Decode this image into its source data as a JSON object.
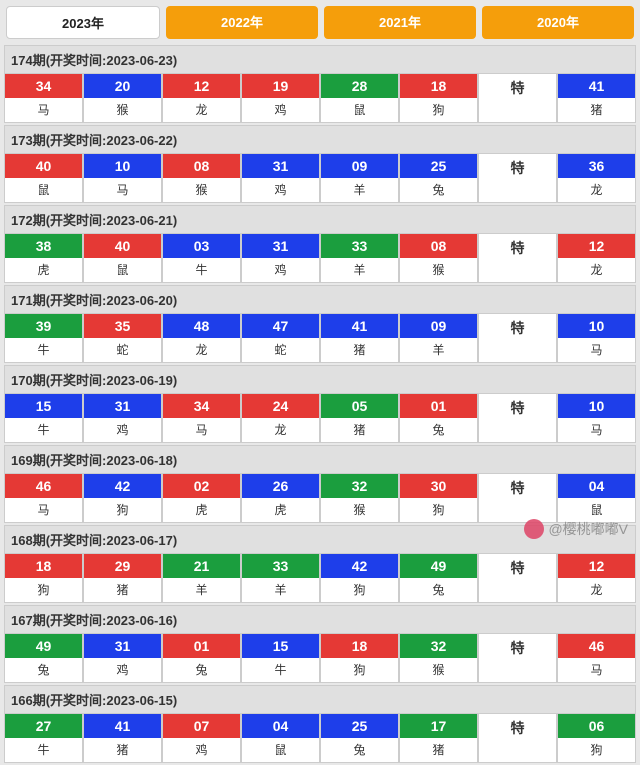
{
  "tabs": [
    {
      "label": "2023年",
      "active": true
    },
    {
      "label": "2022年",
      "active": false
    },
    {
      "label": "2021年",
      "active": false
    },
    {
      "label": "2020年",
      "active": false
    }
  ],
  "colors": {
    "red": "#e53935",
    "blue": "#1e3eea",
    "green": "#1b9e3e",
    "tab_inactive": "#f59e0b",
    "bg": "#e8e8e8"
  },
  "special_label": "特",
  "watermark": "@樱桃嘟嘟V",
  "periods": [
    {
      "period": "174",
      "date": "2023-06-23",
      "balls": [
        {
          "n": "34",
          "c": "red",
          "z": "马"
        },
        {
          "n": "20",
          "c": "blue",
          "z": "猴"
        },
        {
          "n": "12",
          "c": "red",
          "z": "龙"
        },
        {
          "n": "19",
          "c": "red",
          "z": "鸡"
        },
        {
          "n": "28",
          "c": "green",
          "z": "鼠"
        },
        {
          "n": "18",
          "c": "red",
          "z": "狗"
        }
      ],
      "special": {
        "n": "41",
        "c": "blue",
        "z": "猪"
      }
    },
    {
      "period": "173",
      "date": "2023-06-22",
      "balls": [
        {
          "n": "40",
          "c": "red",
          "z": "鼠"
        },
        {
          "n": "10",
          "c": "blue",
          "z": "马"
        },
        {
          "n": "08",
          "c": "red",
          "z": "猴"
        },
        {
          "n": "31",
          "c": "blue",
          "z": "鸡"
        },
        {
          "n": "09",
          "c": "blue",
          "z": "羊"
        },
        {
          "n": "25",
          "c": "blue",
          "z": "兔"
        }
      ],
      "special": {
        "n": "36",
        "c": "blue",
        "z": "龙"
      }
    },
    {
      "period": "172",
      "date": "2023-06-21",
      "balls": [
        {
          "n": "38",
          "c": "green",
          "z": "虎"
        },
        {
          "n": "40",
          "c": "red",
          "z": "鼠"
        },
        {
          "n": "03",
          "c": "blue",
          "z": "牛"
        },
        {
          "n": "31",
          "c": "blue",
          "z": "鸡"
        },
        {
          "n": "33",
          "c": "green",
          "z": "羊"
        },
        {
          "n": "08",
          "c": "red",
          "z": "猴"
        }
      ],
      "special": {
        "n": "12",
        "c": "red",
        "z": "龙"
      }
    },
    {
      "period": "171",
      "date": "2023-06-20",
      "balls": [
        {
          "n": "39",
          "c": "green",
          "z": "牛"
        },
        {
          "n": "35",
          "c": "red",
          "z": "蛇"
        },
        {
          "n": "48",
          "c": "blue",
          "z": "龙"
        },
        {
          "n": "47",
          "c": "blue",
          "z": "蛇"
        },
        {
          "n": "41",
          "c": "blue",
          "z": "猪"
        },
        {
          "n": "09",
          "c": "blue",
          "z": "羊"
        }
      ],
      "special": {
        "n": "10",
        "c": "blue",
        "z": "马"
      }
    },
    {
      "period": "170",
      "date": "2023-06-19",
      "balls": [
        {
          "n": "15",
          "c": "blue",
          "z": "牛"
        },
        {
          "n": "31",
          "c": "blue",
          "z": "鸡"
        },
        {
          "n": "34",
          "c": "red",
          "z": "马"
        },
        {
          "n": "24",
          "c": "red",
          "z": "龙"
        },
        {
          "n": "05",
          "c": "green",
          "z": "猪"
        },
        {
          "n": "01",
          "c": "red",
          "z": "兔"
        }
      ],
      "special": {
        "n": "10",
        "c": "blue",
        "z": "马"
      }
    },
    {
      "period": "169",
      "date": "2023-06-18",
      "balls": [
        {
          "n": "46",
          "c": "red",
          "z": "马"
        },
        {
          "n": "42",
          "c": "blue",
          "z": "狗"
        },
        {
          "n": "02",
          "c": "red",
          "z": "虎"
        },
        {
          "n": "26",
          "c": "blue",
          "z": "虎"
        },
        {
          "n": "32",
          "c": "green",
          "z": "猴"
        },
        {
          "n": "30",
          "c": "red",
          "z": "狗"
        }
      ],
      "special": {
        "n": "04",
        "c": "blue",
        "z": "鼠"
      }
    },
    {
      "period": "168",
      "date": "2023-06-17",
      "balls": [
        {
          "n": "18",
          "c": "red",
          "z": "狗"
        },
        {
          "n": "29",
          "c": "red",
          "z": "猪"
        },
        {
          "n": "21",
          "c": "green",
          "z": "羊"
        },
        {
          "n": "33",
          "c": "green",
          "z": "羊"
        },
        {
          "n": "42",
          "c": "blue",
          "z": "狗"
        },
        {
          "n": "49",
          "c": "green",
          "z": "兔"
        }
      ],
      "special": {
        "n": "12",
        "c": "red",
        "z": "龙"
      }
    },
    {
      "period": "167",
      "date": "2023-06-16",
      "balls": [
        {
          "n": "49",
          "c": "green",
          "z": "兔"
        },
        {
          "n": "31",
          "c": "blue",
          "z": "鸡"
        },
        {
          "n": "01",
          "c": "red",
          "z": "兔"
        },
        {
          "n": "15",
          "c": "blue",
          "z": "牛"
        },
        {
          "n": "18",
          "c": "red",
          "z": "狗"
        },
        {
          "n": "32",
          "c": "green",
          "z": "猴"
        }
      ],
      "special": {
        "n": "46",
        "c": "red",
        "z": "马"
      }
    },
    {
      "period": "166",
      "date": "2023-06-15",
      "balls": [
        {
          "n": "27",
          "c": "green",
          "z": "牛"
        },
        {
          "n": "41",
          "c": "blue",
          "z": "猪"
        },
        {
          "n": "07",
          "c": "red",
          "z": "鸡"
        },
        {
          "n": "04",
          "c": "blue",
          "z": "鼠"
        },
        {
          "n": "25",
          "c": "blue",
          "z": "兔"
        },
        {
          "n": "17",
          "c": "green",
          "z": "猪"
        }
      ],
      "special": {
        "n": "06",
        "c": "green",
        "z": "狗"
      }
    }
  ]
}
